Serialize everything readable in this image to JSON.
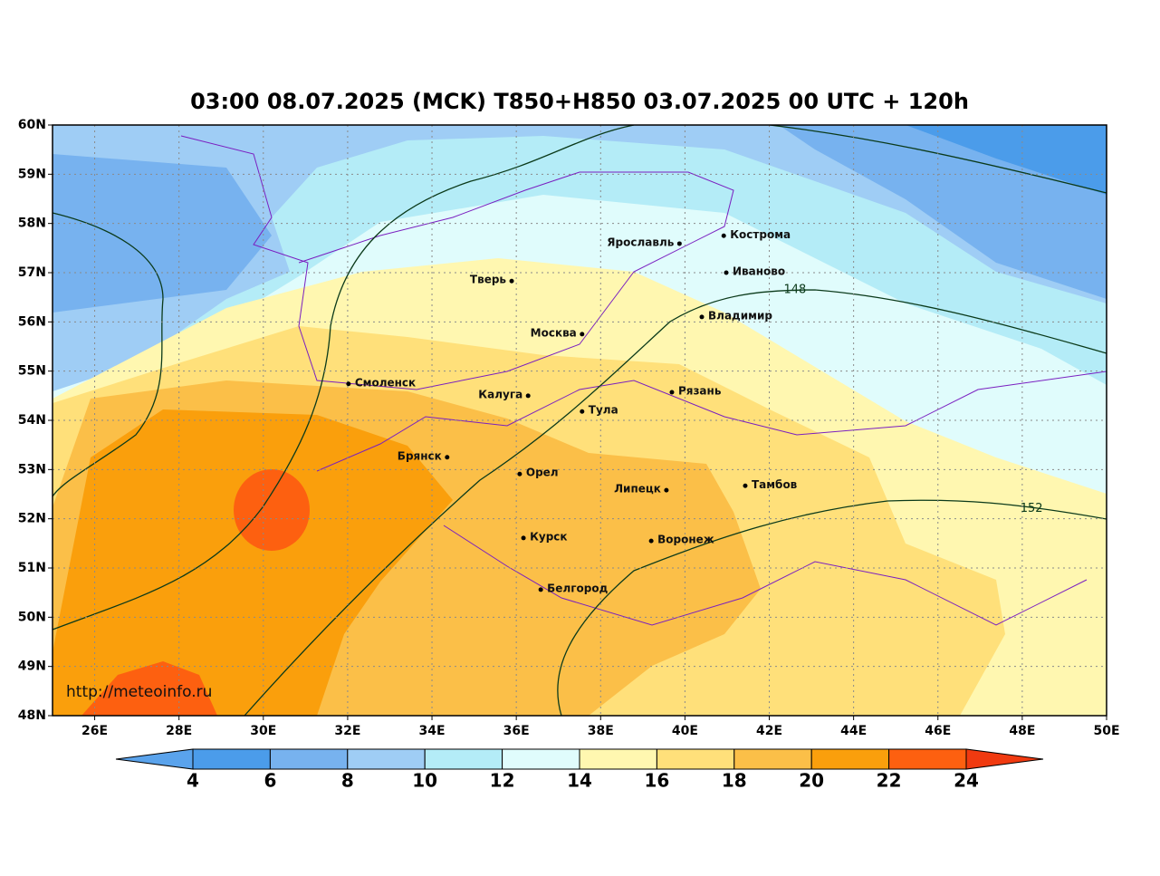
{
  "title": "03:00 08.07.2025 (MCK) T850+H850 03.07.2025 00 UTC + 120h",
  "map": {
    "lon_range": [
      25,
      50
    ],
    "lat_range": [
      48,
      60
    ],
    "grid": true,
    "lon_ticks": [
      {
        "value": 26,
        "label": "26E"
      },
      {
        "value": 28,
        "label": "28E"
      },
      {
        "value": 30,
        "label": "30E"
      },
      {
        "value": 32,
        "label": "32E"
      },
      {
        "value": 34,
        "label": "34E"
      },
      {
        "value": 36,
        "label": "36E"
      },
      {
        "value": 38,
        "label": "38E"
      },
      {
        "value": 40,
        "label": "40E"
      },
      {
        "value": 42,
        "label": "42E"
      },
      {
        "value": 44,
        "label": "44E"
      },
      {
        "value": 46,
        "label": "46E"
      },
      {
        "value": 48,
        "label": "48E"
      },
      {
        "value": 50,
        "label": "50E"
      }
    ],
    "lat_ticks": [
      {
        "value": 48,
        "label": "48N"
      },
      {
        "value": 49,
        "label": "49N"
      },
      {
        "value": 50,
        "label": "50N"
      },
      {
        "value": 51,
        "label": "51N"
      },
      {
        "value": 52,
        "label": "52N"
      },
      {
        "value": 53,
        "label": "53N"
      },
      {
        "value": 54,
        "label": "54N"
      },
      {
        "value": 55,
        "label": "55N"
      },
      {
        "value": 56,
        "label": "56N"
      },
      {
        "value": 57,
        "label": "57N"
      },
      {
        "value": 58,
        "label": "58N"
      },
      {
        "value": 59,
        "label": "59N"
      },
      {
        "value": 60,
        "label": "60N"
      }
    ],
    "cities": [
      {
        "name": "Ярославль",
        "lon": 39.87,
        "lat": 57.59,
        "label_side": "left"
      },
      {
        "name": "Кострома",
        "lon": 40.92,
        "lat": 57.75,
        "label_side": "right"
      },
      {
        "name": "Иваново",
        "lon": 40.98,
        "lat": 57.0,
        "label_side": "right"
      },
      {
        "name": "Тверь",
        "lon": 35.89,
        "lat": 56.83,
        "label_side": "left"
      },
      {
        "name": "Владимир",
        "lon": 40.4,
        "lat": 56.1,
        "label_side": "right"
      },
      {
        "name": "Москва",
        "lon": 37.56,
        "lat": 55.75,
        "label_side": "left"
      },
      {
        "name": "Смоленск",
        "lon": 32.02,
        "lat": 54.74,
        "label_side": "right"
      },
      {
        "name": "Калуга",
        "lon": 36.28,
        "lat": 54.5,
        "label_side": "left"
      },
      {
        "name": "Рязань",
        "lon": 39.69,
        "lat": 54.57,
        "label_side": "right"
      },
      {
        "name": "Тула",
        "lon": 37.56,
        "lat": 54.18,
        "label_side": "right"
      },
      {
        "name": "Брянск",
        "lon": 34.36,
        "lat": 53.25,
        "label_side": "left"
      },
      {
        "name": "Орел",
        "lon": 36.08,
        "lat": 52.91,
        "label_side": "right"
      },
      {
        "name": "Липецк",
        "lon": 39.56,
        "lat": 52.58,
        "label_side": "left"
      },
      {
        "name": "Тамбов",
        "lon": 41.43,
        "lat": 52.67,
        "label_side": "right"
      },
      {
        "name": "Курск",
        "lon": 36.17,
        "lat": 51.61,
        "label_side": "right"
      },
      {
        "name": "Воронеж",
        "lon": 39.2,
        "lat": 51.55,
        "label_side": "right"
      },
      {
        "name": "Белгород",
        "lon": 36.58,
        "lat": 50.56,
        "label_side": "right"
      }
    ],
    "contour_labels": [
      {
        "value": 148,
        "lon": 42.61,
        "lat": 56.65
      },
      {
        "value": 152,
        "lon": 48.22,
        "lat": 52.21
      }
    ],
    "watermark": "http://meteoinfo.ru"
  },
  "colorbar": {
    "ticks": [
      4,
      6,
      8,
      10,
      12,
      14,
      16,
      18,
      20,
      22,
      24
    ],
    "colors": [
      "#5aa3ec",
      "#4b9cea",
      "#77b2ef",
      "#9fcdf5",
      "#b4ecf7",
      "#e0fcfc",
      "#fff7b0",
      "#ffe07a",
      "#fbbf48",
      "#fa9f0c",
      "#fd6010",
      "#f03a10"
    ]
  }
}
